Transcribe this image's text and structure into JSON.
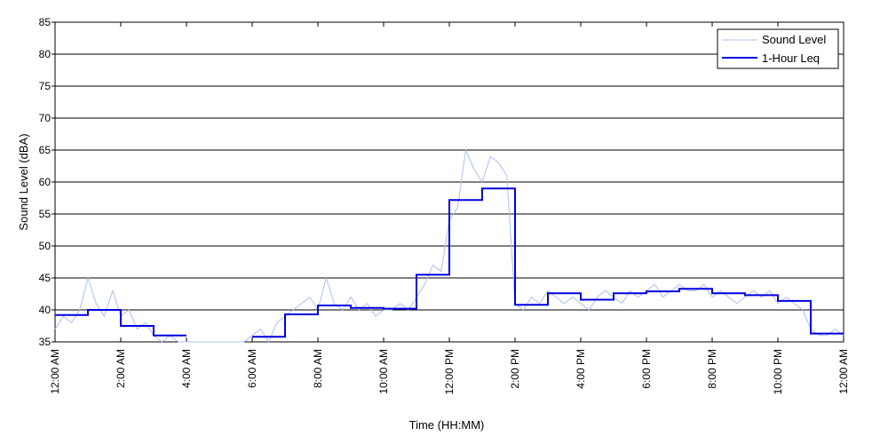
{
  "chart_data": {
    "type": "line",
    "title": "",
    "xlabel": "Time (HH:MM)",
    "ylabel": "Sound Level (dBA)",
    "ylim": [
      35,
      85
    ],
    "yticks": [
      35,
      40,
      45,
      50,
      55,
      60,
      65,
      70,
      75,
      80,
      85
    ],
    "xlim": [
      0,
      24
    ],
    "xtick_hours": [
      0,
      2,
      4,
      6,
      8,
      10,
      12,
      14,
      16,
      18,
      20,
      22,
      24
    ],
    "xtick_labels": [
      "12:00 AM",
      "2:00 AM",
      "4:00 AM",
      "6:00 AM",
      "8:00 AM",
      "10:00 AM",
      "12:00 PM",
      "2:00 PM",
      "4:00 PM",
      "6:00 PM",
      "8:00 PM",
      "10:00 PM",
      "12:00 AM"
    ],
    "grid": "horizontal",
    "legend_position": "top-right",
    "series": [
      {
        "name": "Sound Level",
        "style": "thin",
        "color": "#a8c0f0",
        "x": [
          0.0,
          0.25,
          0.5,
          0.75,
          1.0,
          1.25,
          1.5,
          1.75,
          2.0,
          2.25,
          2.5,
          2.75,
          3.0,
          3.25,
          3.5,
          3.75,
          4.0,
          4.25,
          4.5,
          4.75,
          5.0,
          5.25,
          5.5,
          5.75,
          6.0,
          6.25,
          6.5,
          6.75,
          7.0,
          7.25,
          7.5,
          7.75,
          8.0,
          8.25,
          8.5,
          8.75,
          9.0,
          9.25,
          9.5,
          9.75,
          10.0,
          10.25,
          10.5,
          10.75,
          11.0,
          11.25,
          11.5,
          11.75,
          12.0,
          12.25,
          12.5,
          12.75,
          13.0,
          13.25,
          13.5,
          13.75,
          14.0,
          14.25,
          14.5,
          14.75,
          15.0,
          15.25,
          15.5,
          15.75,
          16.0,
          16.25,
          16.5,
          16.75,
          17.0,
          17.25,
          17.5,
          17.75,
          18.0,
          18.25,
          18.5,
          18.75,
          19.0,
          19.25,
          19.5,
          19.75,
          20.0,
          20.25,
          20.5,
          20.75,
          21.0,
          21.25,
          21.5,
          21.75,
          22.0,
          22.25,
          22.5,
          22.75,
          23.0,
          23.25,
          23.5,
          23.75,
          24.0
        ],
        "y": [
          37,
          39,
          38,
          40,
          45,
          41,
          39,
          43,
          39,
          40,
          37,
          38,
          36,
          35,
          36,
          35,
          35,
          35,
          35,
          35,
          35,
          35,
          35,
          35,
          36,
          37,
          35,
          38,
          39,
          40,
          41,
          42,
          40,
          45,
          41,
          40,
          42,
          40,
          41,
          39,
          40,
          40,
          41,
          40,
          42,
          44,
          47,
          46,
          54,
          56,
          65,
          62,
          60,
          64,
          63,
          61,
          41,
          40,
          42,
          41,
          43,
          42,
          41,
          42,
          41,
          40,
          42,
          43,
          42,
          41,
          43,
          42,
          43,
          44,
          42,
          43,
          44,
          43,
          43,
          44,
          42,
          43,
          42,
          41,
          42,
          43,
          42,
          43,
          41,
          42,
          41,
          40,
          37,
          36,
          36,
          37,
          36
        ]
      },
      {
        "name": "1-Hour Leq",
        "style": "step",
        "color": "#0000e0",
        "hours": [
          0,
          1,
          2,
          3,
          4,
          5,
          6,
          7,
          8,
          9,
          10,
          11,
          12,
          13,
          14,
          15,
          16,
          17,
          18,
          19,
          20,
          21,
          22,
          23
        ],
        "values": [
          39.2,
          40.0,
          37.5,
          36.0,
          null,
          null,
          35.8,
          39.3,
          40.7,
          40.3,
          40.2,
          45.5,
          57.2,
          59.0,
          40.8,
          42.6,
          41.6,
          42.6,
          42.9,
          43.3,
          42.6,
          42.3,
          41.4,
          36.3
        ]
      }
    ]
  }
}
